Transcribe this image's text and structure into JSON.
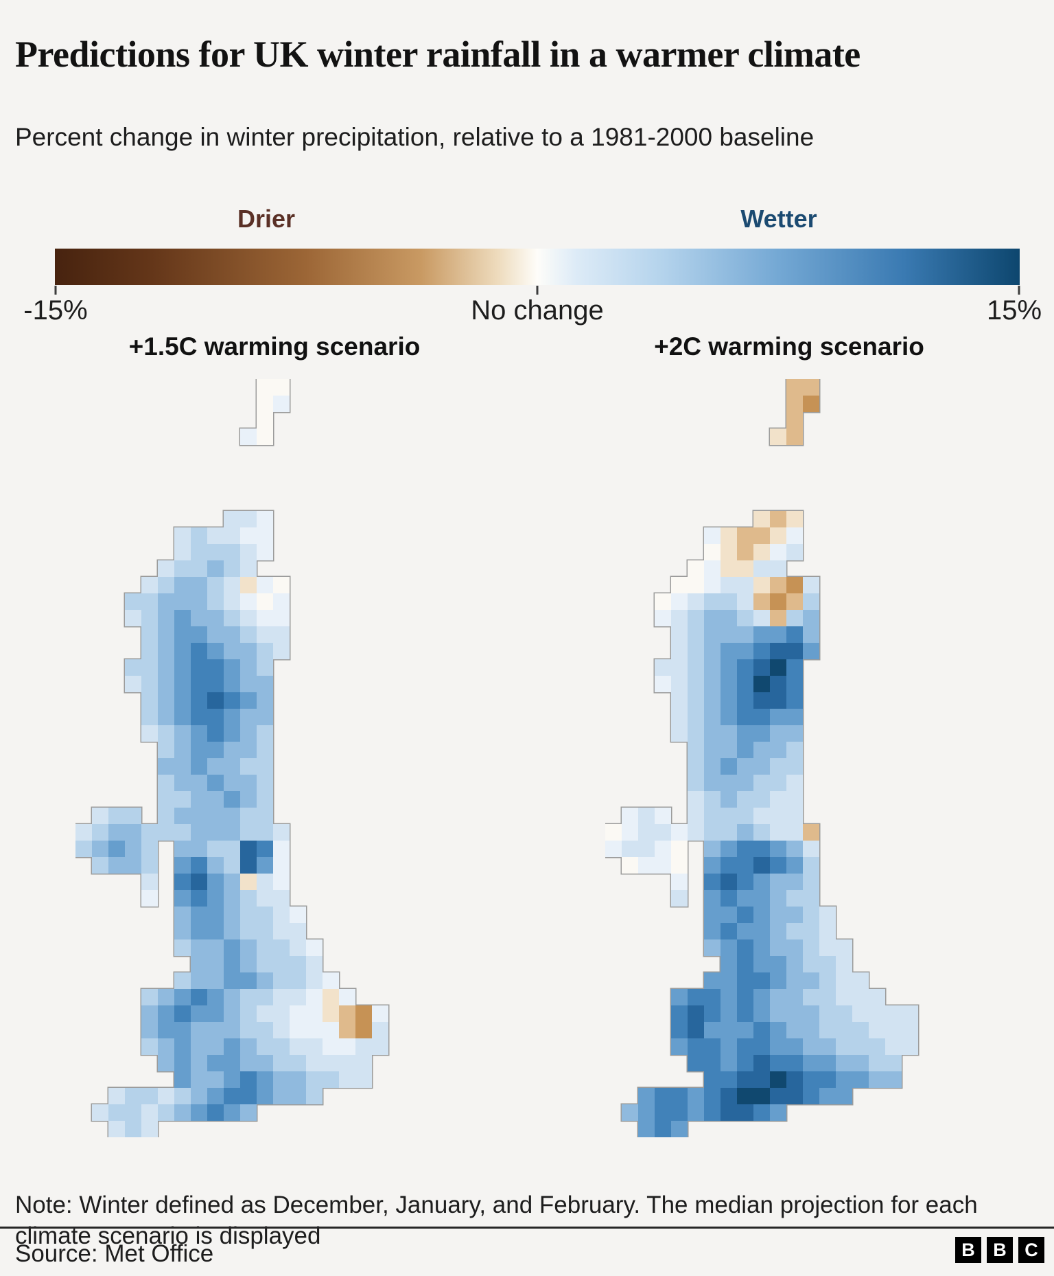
{
  "header": {
    "title": "Predictions for UK winter rainfall in a warmer climate",
    "subtitle": "Percent change in winter precipitation, relative to a 1981-2000 baseline"
  },
  "legend": {
    "drier_label": "Drier",
    "wetter_label": "Wetter",
    "min_label": "-15%",
    "mid_label": "No change",
    "max_label": "15%",
    "drier_label_color": "#5a3026",
    "wetter_label_color": "#1b4a71",
    "gradient_stops": [
      [
        "0%",
        "#47230f"
      ],
      [
        "10%",
        "#643619"
      ],
      [
        "26%",
        "#9c6636"
      ],
      [
        "38%",
        "#c99a63"
      ],
      [
        "46%",
        "#eedcbe"
      ],
      [
        "50%",
        "#fefdf9"
      ],
      [
        "54%",
        "#ddebf7"
      ],
      [
        "63%",
        "#b4d3ec"
      ],
      [
        "75%",
        "#74a8d4"
      ],
      [
        "88%",
        "#3a7ab2"
      ],
      [
        "100%",
        "#0d466e"
      ]
    ]
  },
  "note": "Note: Winter defined as December, January, and February. The median projection for each climate scenario is displayed",
  "source": "Source: Met Office",
  "logo": {
    "letters": [
      "B",
      "B",
      "C"
    ]
  },
  "chart_data": {
    "type": "heatmap",
    "title": "Predictions for UK winter rainfall in a warmer climate",
    "subtitle": "Percent change in winter precipitation, relative to a 1981-2000 baseline",
    "units": "percent change vs 1981-2000 baseline",
    "value_domain": [
      -15,
      15
    ],
    "legend": {
      "negative_label": "Drier",
      "positive_label": "Wetter",
      "ticks": [
        "-15%",
        "No change",
        "15%"
      ]
    },
    "palette_colors": {
      "a": "#fbf9f4",
      "b": "#e9f1f9",
      "c": "#d2e3f2",
      "d": "#b5d2ea",
      "e": "#90bade",
      "f": "#669ecd",
      "g": "#4182b9",
      "h": "#27669d",
      "i": "#10486f",
      "p": "#f2e2ca",
      "q": "#dfba8c",
      "r": "#c69255",
      "s": "#a66d33"
    },
    "palette_values_pct": {
      "a": 0,
      "b": 2,
      "c": 4,
      "d": 6,
      "e": 8,
      "f": 10,
      "g": 12,
      "h": 14,
      "i": 15,
      "p": -2,
      "q": -5,
      "r": -8,
      "s": -11
    },
    "outline_color": "#9b9b9b",
    "cell_size": 24,
    "panels": [
      {
        "title": "+1.5C warming scenario",
        "summary": "Most of the UK wetter (light to mid blues); small drier spots near Moray coast, northwest England and the Norfolk coast; Shetland near no-change.",
        "grid": [
          "...........aa.......",
          "...........ab.......",
          "...........a........",
          "..........ba........",
          "....................",
          "....................",
          "....................",
          "....................",
          ".........ccb........",
          "......cdccbb........",
          "......cdddcb........",
          ".....cddedc.........",
          "....cdeedcpba.......",
          "...ddeeedcbab.......",
          "...cdefeedcbb.......",
          "....deffeedcc.......",
          "....defgfeedc.......",
          "...ddefggfed........",
          "...cdefggfee........",
          "....defghgfe........",
          "....defggfee........",
          "....cdefgfed........",
          ".....deffeed........",
          ".....eefeedd........",
          ".....deefeed........",
          ".....ddeefed........",
          ".cdd.deeeedd........",
          "cdeedddeeeddc.......",
          "defed.eeddhgb.......",
          ".deed.fgedhfb.......",
          "....c.ghfepcb.......",
          "....b.fgfedcc.......",
          "......effeddcb......",
          "......effeddcc......",
          "......deefeddcb.....",
          ".......eefedddc.....",
          "......deeffeddcb....",
          "....defgfeddccbpb...",
          "....efgffedccbbpqrb.",
          "....effeeeddcbbbqrc.",
          "....defeefeddccbbcc.",
          ".....efeffeeddcccc..",
          "......feefgfeeddcc..",
          "..cddcdefggfeed.....",
          ".cddcdefgfe.........",
          "..cdc..............."
        ]
      },
      {
        "title": "+2C warming scenario",
        "summary": "Shetland and far-north Scotland drier (tans/browns, incl. Moray blotch); east Scotland and southern England much wetter with deep navy band along the south coast; Northern Ireland near no-change.",
        "grid": [
          "...........qq.......",
          "...........qr.......",
          "...........q........",
          "..........pq........",
          "....................",
          "....................",
          "....................",
          "....................",
          ".........pqp........",
          "......bpqqpb........",
          "......apqpbc........",
          ".....abppcc.........",
          "....aabccpqrc.......",
          "...abcddcqrqd.......",
          "...bcdeedcqde.......",
          "....cdeeeffge.......",
          "....cdeffghhf.......",
          "...ccdefghig........",
          "...bcdefgihg........",
          "....cdefghhg........",
          "....cdefggff........",
          "....cdeeffee........",
          ".....deefeed........",
          ".....defeedd........",
          ".....deeeddc........",
          ".....cdeddcc........",
          ".bcb.cdddccc........",
          "abccbcddedccq.......",
          "bccba.efggfec.......",
          ".abba.fgghgfd.......",
          "....b.ghgfeed.......",
          "....c.fgffedd.......",
          "......ffgfeedc......",
          "......fgffeddc......",
          "......efgfeedcc.....",
          ".......fgffeddc.....",
          "......ffggfeedcc....",
          "....fggfgfeeddccc...",
          "....ghgfgfeeeddcccc.",
          "....ghfffgfeedddccc.",
          "....fggfggffeedddcc.",
          ".....ggfghggffeedd..",
          "......gghhihggffee..",
          "..fggfghiihhgff.....",
          ".efggfghhgf.........",
          "..fgf..............."
        ]
      }
    ]
  }
}
